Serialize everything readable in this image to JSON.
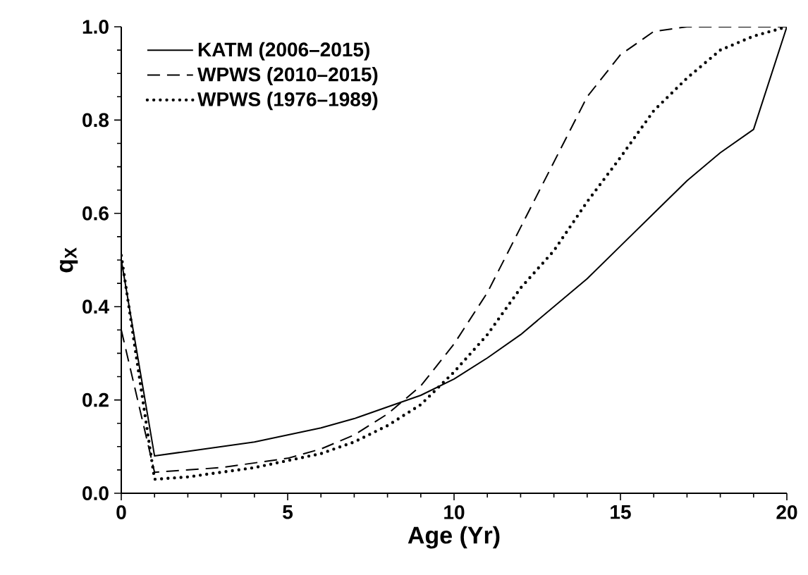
{
  "chart_data": {
    "type": "line",
    "xlabel": "Age (Yr)",
    "ylabel": "q$_{X}$",
    "legend": "top left",
    "xlim": [
      0,
      20
    ],
    "ylim": [
      0,
      1
    ],
    "xticks": [
      0,
      5,
      10,
      15,
      20
    ],
    "yticks": [
      {
        "value": 0,
        "label": "0.0"
      },
      {
        "value": 0.2,
        "label": "0.2"
      },
      {
        "value": 0.4,
        "label": "0.4"
      },
      {
        "value": 0.6,
        "label": "0.6"
      },
      {
        "value": 0.8,
        "label": "0.8"
      },
      {
        "value": 1,
        "label": "1.0"
      }
    ],
    "x": [
      0,
      1,
      2,
      3,
      4,
      5,
      6,
      7,
      8,
      9,
      10,
      11,
      12,
      13,
      14,
      15,
      16,
      17,
      18,
      19,
      20
    ],
    "series": [
      {
        "name": "KATM (2006–2015)",
        "color": "#000000",
        "line_style": "solid",
        "values": [
          0.5,
          0.08,
          0.09,
          0.1,
          0.11,
          0.125,
          0.14,
          0.16,
          0.185,
          0.21,
          0.245,
          0.29,
          0.34,
          0.4,
          0.46,
          0.53,
          0.6,
          0.67,
          0.73,
          0.78,
          1.0
        ]
      },
      {
        "name": "WPWS (2010–2015)",
        "color": "#000000",
        "line_style": "dashed",
        "values": [
          0.35,
          0.045,
          0.05,
          0.055,
          0.065,
          0.075,
          0.095,
          0.125,
          0.17,
          0.23,
          0.32,
          0.43,
          0.57,
          0.71,
          0.85,
          0.94,
          0.99,
          1.0,
          1.0,
          1.0,
          1.0
        ]
      },
      {
        "name": "WPWS (1976–1989)",
        "color": "#000000",
        "line_style": "dotted",
        "values": [
          0.51,
          0.03,
          0.035,
          0.045,
          0.055,
          0.07,
          0.085,
          0.11,
          0.145,
          0.19,
          0.26,
          0.34,
          0.44,
          0.52,
          0.625,
          0.72,
          0.82,
          0.89,
          0.95,
          0.98,
          1.0
        ]
      }
    ]
  }
}
